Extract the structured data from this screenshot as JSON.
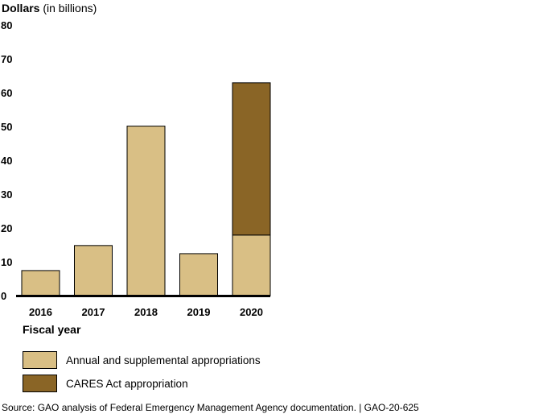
{
  "ylabel_bold": "Dollars",
  "ylabel_rest": " (in billions)",
  "xlabel": "Fiscal year",
  "source": "Source: GAO analysis of Federal Emergency Management Agency documentation.  |  GAO-20-625",
  "colors": {
    "annual": "#d9bf85",
    "cares": "#8a6526"
  },
  "chart_data": {
    "type": "bar",
    "stacked": true,
    "categories": [
      "2016",
      "2017",
      "2018",
      "2019",
      "2020"
    ],
    "series": [
      {
        "name": "Annual and supplemental appropriations",
        "values": [
          7.4,
          14.8,
          50.1,
          12.4,
          17.9
        ]
      },
      {
        "name": "CARES Act appropriation",
        "values": [
          0,
          0,
          0,
          0,
          45.0
        ]
      }
    ],
    "yticks": [
      0,
      10,
      20,
      30,
      40,
      50,
      60,
      70,
      80
    ],
    "ylim": [
      0,
      80
    ],
    "grid": false,
    "legend": "bottom-left"
  }
}
